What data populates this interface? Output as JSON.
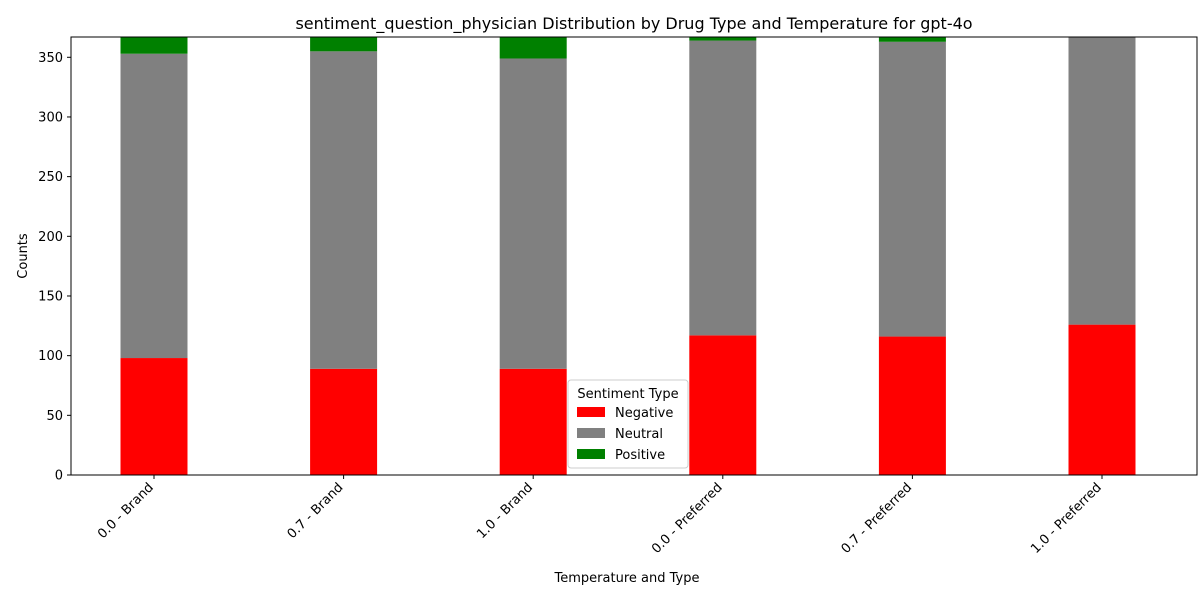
{
  "chart_data": {
    "type": "bar",
    "stacked": true,
    "title": "sentiment_question_physician Distribution by Drug Type and Temperature for gpt-4o",
    "xlabel": "Temperature and Type",
    "ylabel": "Counts",
    "categories": [
      "0.0 - Brand",
      "0.7 - Brand",
      "1.0 - Brand",
      "0.0 - Preferred",
      "0.7 - Preferred",
      "1.0 - Preferred"
    ],
    "ylim": [
      0,
      367
    ],
    "yticks": [
      0,
      50,
      100,
      150,
      200,
      250,
      300,
      350
    ],
    "grid": false,
    "legend": {
      "title": "Sentiment Type",
      "placement": "bottom-center"
    },
    "series": [
      {
        "name": "Negative",
        "color": "#ff0000",
        "values": [
          98,
          89,
          89,
          117,
          116,
          126
        ]
      },
      {
        "name": "Neutral",
        "color": "#808080",
        "values": [
          255,
          266,
          260,
          247,
          247,
          241
        ]
      },
      {
        "name": "Positive",
        "color": "#008000",
        "values": [
          14,
          12,
          18,
          3,
          4,
          0
        ]
      }
    ]
  }
}
